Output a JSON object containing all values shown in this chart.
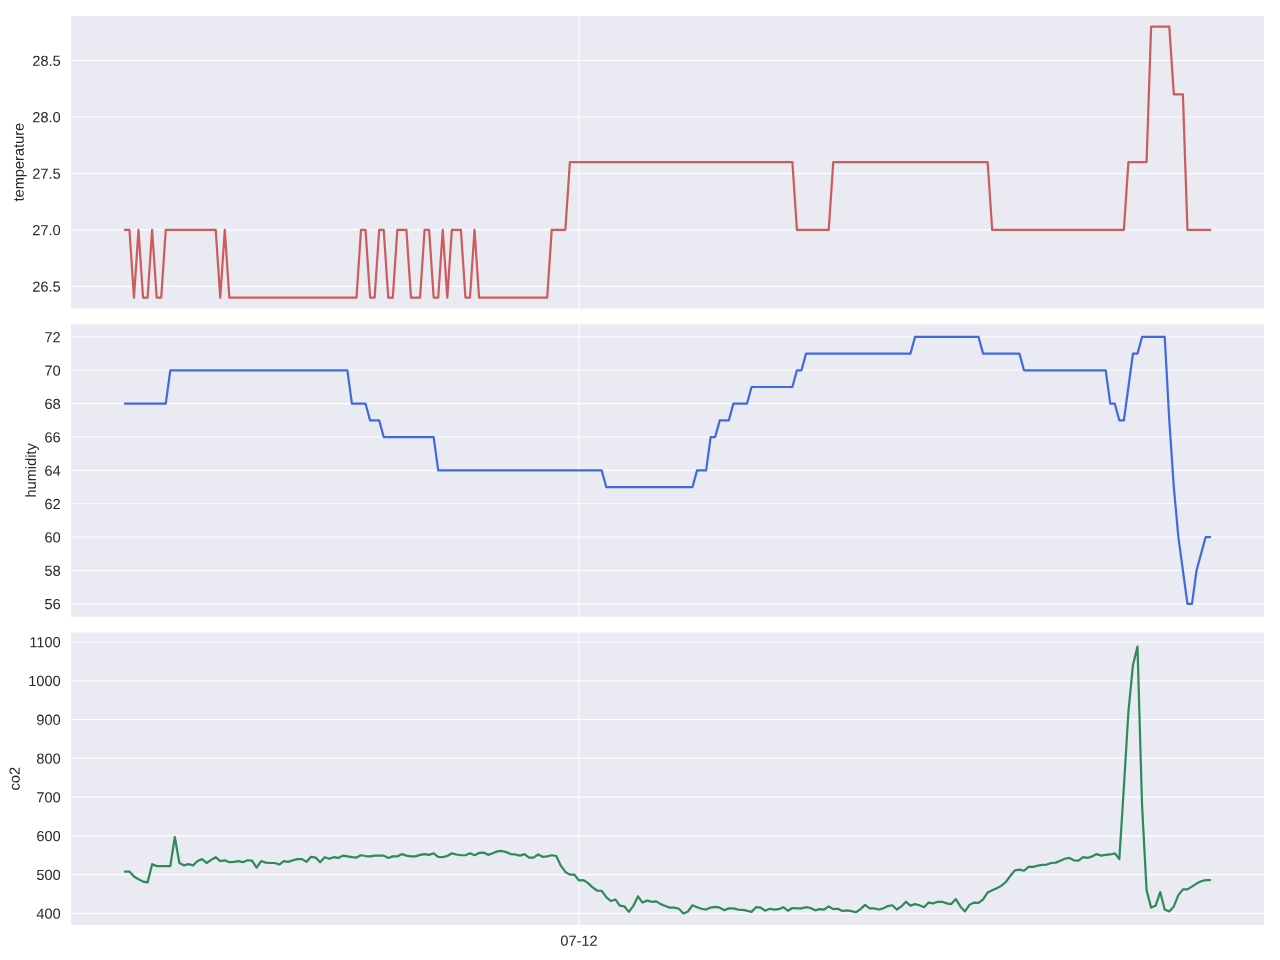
{
  "chart_data": [
    {
      "type": "line",
      "ylabel": "temperature",
      "grid": true,
      "tick_labels": "y",
      "ylim": [
        26.3,
        28.9
      ],
      "yticks": [
        26.5,
        {
          "value": 27,
          "label": "27.0"
        },
        27.5,
        {
          "value": 28,
          "label": "28.0"
        },
        28.5
      ],
      "categories": [
        null,
        null,
        null,
        null,
        null,
        null,
        null,
        null,
        null,
        null,
        null,
        null,
        null,
        null,
        null,
        null,
        null,
        null,
        null,
        null,
        null,
        null,
        null,
        null,
        null,
        null,
        null,
        null,
        null,
        null,
        null,
        null,
        null,
        null,
        null,
        null,
        null,
        null,
        null,
        null,
        null,
        null,
        null,
        null,
        null,
        null,
        null,
        null,
        null,
        null,
        null,
        null,
        null,
        null,
        null,
        null,
        null,
        null,
        null,
        null,
        null,
        null,
        null,
        null,
        null,
        null,
        null,
        null,
        null,
        null,
        null,
        null,
        null,
        null,
        null,
        null,
        null,
        null,
        null,
        null,
        null,
        null,
        null,
        null,
        null,
        null,
        null,
        null,
        null,
        null,
        null,
        null,
        null,
        null,
        null,
        null,
        null,
        null,
        null,
        null,
        null,
        null,
        null,
        null,
        null,
        null,
        null,
        null,
        null,
        null,
        null,
        null,
        null,
        null,
        null,
        null,
        null,
        null,
        null,
        null,
        null,
        null,
        null,
        null,
        null,
        null,
        null,
        null,
        null,
        null,
        null,
        null,
        null,
        null,
        null,
        null,
        null,
        null,
        null,
        null,
        null,
        null,
        null,
        null,
        null,
        null,
        null,
        null,
        null,
        null,
        null,
        null,
        null,
        null,
        null,
        null,
        null,
        null,
        null,
        null,
        null,
        null,
        null,
        null,
        null,
        null,
        null,
        null,
        null,
        null,
        null,
        null,
        null,
        null,
        null,
        null,
        null,
        null,
        null,
        null,
        null,
        null,
        null,
        null,
        null,
        null,
        null,
        null,
        null,
        null,
        null,
        null,
        null,
        null,
        null,
        null,
        null,
        null,
        null,
        null,
        null,
        null,
        null,
        null,
        null,
        null,
        null,
        null,
        null,
        null,
        null,
        null,
        null,
        null,
        null,
        null,
        null,
        null,
        null,
        null,
        null,
        null,
        null,
        null,
        null,
        null,
        null,
        null,
        null,
        null,
        null,
        null,
        null,
        null,
        null,
        null,
        null,
        null,
        null,
        null
      ],
      "series": [
        {
          "color": "#cd5c5c",
          "values": [
            27.0,
            27.0,
            26.4,
            27.0,
            26.4,
            26.4,
            27.0,
            26.4,
            26.4,
            27.0,
            27.0,
            27.0,
            27.0,
            27.0,
            27.0,
            27.0,
            27.0,
            27.0,
            27.0,
            27.0,
            27.0,
            26.4,
            27.0,
            26.4,
            26.4,
            26.4,
            26.4,
            26.4,
            26.4,
            26.4,
            26.4,
            26.4,
            26.4,
            26.4,
            26.4,
            26.4,
            26.4,
            26.4,
            26.4,
            26.4,
            26.4,
            26.4,
            26.4,
            26.4,
            26.4,
            26.4,
            26.4,
            26.4,
            26.4,
            26.4,
            26.4,
            26.4,
            27.0,
            27.0,
            26.4,
            26.4,
            27.0,
            27.0,
            26.4,
            26.4,
            27.0,
            27.0,
            27.0,
            26.4,
            26.4,
            26.4,
            27.0,
            27.0,
            26.4,
            26.4,
            27.0,
            26.4,
            27.0,
            27.0,
            27.0,
            26.4,
            26.4,
            27.0,
            26.4,
            26.4,
            26.4,
            26.4,
            26.4,
            26.4,
            26.4,
            26.4,
            26.4,
            26.4,
            26.4,
            26.4,
            26.4,
            26.4,
            26.4,
            26.4,
            27.0,
            27.0,
            27.0,
            27.0,
            27.6,
            27.6,
            27.6,
            27.6,
            27.6,
            27.6,
            27.6,
            27.6,
            27.6,
            27.6,
            27.6,
            27.6,
            27.6,
            27.6,
            27.6,
            27.6,
            27.6,
            27.6,
            27.6,
            27.6,
            27.6,
            27.6,
            27.6,
            27.6,
            27.6,
            27.6,
            27.6,
            27.6,
            27.6,
            27.6,
            27.6,
            27.6,
            27.6,
            27.6,
            27.6,
            27.6,
            27.6,
            27.6,
            27.6,
            27.6,
            27.6,
            27.6,
            27.6,
            27.6,
            27.6,
            27.6,
            27.6,
            27.6,
            27.6,
            27.6,
            27.0,
            27.0,
            27.0,
            27.0,
            27.0,
            27.0,
            27.0,
            27.0,
            27.6,
            27.6,
            27.6,
            27.6,
            27.6,
            27.6,
            27.6,
            27.6,
            27.6,
            27.6,
            27.6,
            27.6,
            27.6,
            27.6,
            27.6,
            27.6,
            27.6,
            27.6,
            27.6,
            27.6,
            27.6,
            27.6,
            27.6,
            27.6,
            27.6,
            27.6,
            27.6,
            27.6,
            27.6,
            27.6,
            27.6,
            27.6,
            27.6,
            27.6,
            27.6,
            27.0,
            27.0,
            27.0,
            27.0,
            27.0,
            27.0,
            27.0,
            27.0,
            27.0,
            27.0,
            27.0,
            27.0,
            27.0,
            27.0,
            27.0,
            27.0,
            27.0,
            27.0,
            27.0,
            27.0,
            27.0,
            27.0,
            27.0,
            27.0,
            27.0,
            27.0,
            27.0,
            27.0,
            27.0,
            27.0,
            27.6,
            27.6,
            27.6,
            27.6,
            27.6,
            28.8,
            28.8,
            28.8,
            28.8,
            28.8,
            28.2,
            28.2,
            28.2,
            27.0,
            27.0,
            27.0,
            27.0,
            27.0,
            27.0
          ]
        }
      ]
    },
    {
      "type": "line",
      "ylabel": "humidity",
      "grid": true,
      "tick_labels": "y",
      "ylim": [
        55.2,
        72.8
      ],
      "yticks": [
        56,
        58,
        60,
        62,
        64,
        66,
        68,
        70,
        72
      ],
      "categories": [
        null,
        null,
        null,
        null,
        null,
        null,
        null,
        null,
        null,
        null,
        null,
        null,
        null,
        null,
        null,
        null,
        null,
        null,
        null,
        null,
        null,
        null,
        null,
        null,
        null,
        null,
        null,
        null,
        null,
        null,
        null,
        null,
        null,
        null,
        null,
        null,
        null,
        null,
        null,
        null,
        null,
        null,
        null,
        null,
        null,
        null,
        null,
        null,
        null,
        null,
        null,
        null,
        null,
        null,
        null,
        null,
        null,
        null,
        null,
        null,
        null,
        null,
        null,
        null,
        null,
        null,
        null,
        null,
        null,
        null,
        null,
        null,
        null,
        null,
        null,
        null,
        null,
        null,
        null,
        null,
        null,
        null,
        null,
        null,
        null,
        null,
        null,
        null,
        null,
        null,
        null,
        null,
        null,
        null,
        null,
        null,
        null,
        null,
        null,
        null,
        null,
        null,
        null,
        null,
        null,
        null,
        null,
        null,
        null,
        null,
        null,
        null,
        null,
        null,
        null,
        null,
        null,
        null,
        null,
        null,
        null,
        null,
        null,
        null,
        null,
        null,
        null,
        null,
        null,
        null,
        null,
        null,
        null,
        null,
        null,
        null,
        null,
        null,
        null,
        null,
        null,
        null,
        null,
        null,
        null,
        null,
        null,
        null,
        null,
        null,
        null,
        null,
        null,
        null,
        null,
        null,
        null,
        null,
        null,
        null,
        null,
        null,
        null,
        null,
        null,
        null,
        null,
        null,
        null,
        null,
        null,
        null,
        null,
        null,
        null,
        null,
        null,
        null,
        null,
        null,
        null,
        null,
        null,
        null,
        null,
        null,
        null,
        null,
        null,
        null,
        null,
        null,
        null,
        null,
        null,
        null,
        null,
        null,
        null,
        null,
        null,
        null,
        null,
        null,
        null,
        null,
        null,
        null,
        null,
        null,
        null,
        null,
        null,
        null,
        null,
        null,
        null,
        null,
        null,
        null,
        null,
        null,
        null,
        null,
        null,
        null,
        null,
        null,
        null,
        null,
        null,
        null,
        null,
        null,
        null,
        null,
        null,
        null,
        null,
        null
      ],
      "series": [
        {
          "color": "#4169e1",
          "values": [
            68,
            68,
            68,
            68,
            68,
            68,
            68,
            68,
            68,
            68,
            70,
            70,
            70,
            70,
            70,
            70,
            70,
            70,
            70,
            70,
            70,
            70,
            70,
            70,
            70,
            70,
            70,
            70,
            70,
            70,
            70,
            70,
            70,
            70,
            70,
            70,
            70,
            70,
            70,
            70,
            70,
            70,
            70,
            70,
            70,
            70,
            70,
            70,
            70,
            70,
            68,
            68,
            68,
            68,
            67,
            67,
            67,
            66,
            66,
            66,
            66,
            66,
            66,
            66,
            66,
            66,
            66,
            66,
            66,
            64,
            64,
            64,
            64,
            64,
            64,
            64,
            64,
            64,
            64,
            64,
            64,
            64,
            64,
            64,
            64,
            64,
            64,
            64,
            64,
            64,
            64,
            64,
            64,
            64,
            64,
            64,
            64,
            64,
            64,
            64,
            64,
            64,
            64,
            64,
            64,
            64,
            63,
            63,
            63,
            63,
            63,
            63,
            63,
            63,
            63,
            63,
            63,
            63,
            63,
            63,
            63,
            63,
            63,
            63,
            63,
            63,
            64,
            64,
            64,
            66,
            66,
            67,
            67,
            67,
            68,
            68,
            68,
            68,
            69,
            69,
            69,
            69,
            69,
            69,
            69,
            69,
            69,
            69,
            70,
            70,
            71,
            71,
            71,
            71,
            71,
            71,
            71,
            71,
            71,
            71,
            71,
            71,
            71,
            71,
            71,
            71,
            71,
            71,
            71,
            71,
            71,
            71,
            71,
            71,
            72,
            72,
            72,
            72,
            72,
            72,
            72,
            72,
            72,
            72,
            72,
            72,
            72,
            72,
            72,
            71,
            71,
            71,
            71,
            71,
            71,
            71,
            71,
            71,
            70,
            70,
            70,
            70,
            70,
            70,
            70,
            70,
            70,
            70,
            70,
            70,
            70,
            70,
            70,
            70,
            70,
            70,
            70,
            68,
            68,
            67,
            67,
            69,
            71,
            71,
            72,
            72,
            72,
            72,
            72,
            72,
            67,
            63,
            60,
            58,
            56,
            56,
            58,
            59,
            60,
            60
          ]
        }
      ]
    },
    {
      "type": "line",
      "ylabel": "co2",
      "grid": true,
      "ylim": [
        369,
        1126
      ],
      "yticks": [
        400,
        500,
        600,
        700,
        800,
        900,
        1000,
        1100
      ],
      "categories": [
        null,
        null,
        null,
        null,
        null,
        null,
        null,
        null,
        null,
        null,
        null,
        null,
        null,
        null,
        null,
        null,
        null,
        null,
        null,
        null,
        null,
        null,
        null,
        null,
        null,
        null,
        null,
        null,
        null,
        null,
        null,
        null,
        null,
        null,
        null,
        null,
        null,
        null,
        null,
        null,
        null,
        null,
        null,
        null,
        null,
        null,
        null,
        null,
        null,
        null,
        null,
        null,
        null,
        null,
        null,
        null,
        null,
        null,
        null,
        null,
        null,
        null,
        null,
        null,
        null,
        null,
        null,
        null,
        null,
        null,
        null,
        null,
        null,
        null,
        null,
        null,
        null,
        null,
        null,
        null,
        null,
        null,
        null,
        null,
        null,
        null,
        null,
        null,
        null,
        null,
        null,
        null,
        null,
        null,
        null,
        null,
        null,
        null,
        null,
        null,
        "07-12",
        null,
        null,
        null,
        null,
        null,
        null,
        null,
        null,
        null,
        null,
        null,
        null,
        null,
        null,
        null,
        null,
        null,
        null,
        null,
        null,
        null,
        null,
        null,
        null,
        null,
        null,
        null,
        null,
        null,
        null,
        null,
        null,
        null,
        null,
        null,
        null,
        null,
        null,
        null,
        null,
        null,
        null,
        null,
        null,
        null,
        null,
        null,
        null,
        null,
        null,
        null,
        null,
        null,
        null,
        null,
        null,
        null,
        null,
        null,
        null,
        null,
        null,
        null,
        null,
        null,
        null,
        null,
        null,
        null,
        null,
        null,
        null,
        null,
        null,
        null,
        null,
        null,
        null,
        null,
        null,
        null,
        null,
        null,
        null,
        null,
        null,
        null,
        null,
        null,
        null,
        null,
        null,
        null,
        null,
        null,
        null,
        null,
        null,
        null,
        null,
        null,
        null,
        null,
        null,
        null,
        null,
        null,
        null,
        null,
        null,
        null,
        null,
        null,
        null,
        null,
        null,
        null,
        null,
        null,
        null,
        null,
        null,
        null,
        null,
        null,
        null,
        null,
        null,
        null,
        null,
        null,
        null,
        null,
        null,
        null,
        null,
        null,
        null,
        null
      ],
      "series": [
        {
          "color": "#2e8b57",
          "values": [
            508,
            508,
            495,
            488,
            482,
            480,
            527,
            522,
            522,
            522,
            522,
            597,
            530,
            524,
            527,
            524,
            535,
            540,
            530,
            538,
            545,
            535,
            537,
            532,
            533,
            535,
            532,
            537,
            536,
            518,
            535,
            531,
            530,
            530,
            526,
            535,
            533,
            537,
            540,
            540,
            533,
            546,
            544,
            532,
            545,
            541,
            545,
            543,
            549,
            547,
            545,
            544,
            550,
            548,
            547,
            549,
            549,
            549,
            543,
            547,
            547,
            553,
            549,
            547,
            547,
            551,
            553,
            551,
            555,
            546,
            545,
            548,
            555,
            552,
            550,
            550,
            555,
            550,
            556,
            557,
            551,
            555,
            560,
            561,
            558,
            553,
            552,
            549,
            553,
            544,
            544,
            552,
            546,
            547,
            550,
            548,
            523,
            507,
            500,
            500,
            485,
            486,
            478,
            467,
            459,
            458,
            442,
            432,
            436,
            420,
            418,
            404,
            420,
            444,
            428,
            433,
            430,
            431,
            424,
            419,
            415,
            415,
            412,
            400,
            405,
            421,
            416,
            412,
            410,
            415,
            417,
            415,
            408,
            413,
            413,
            410,
            409,
            407,
            404,
            416,
            415,
            407,
            412,
            410,
            411,
            416,
            407,
            414,
            413,
            413,
            416,
            414,
            408,
            411,
            410,
            418,
            411,
            412,
            406,
            408,
            406,
            403,
            411,
            422,
            413,
            413,
            410,
            413,
            419,
            421,
            410,
            418,
            430,
            420,
            424,
            421,
            416,
            428,
            426,
            430,
            430,
            426,
            424,
            437,
            418,
            405,
            422,
            428,
            427,
            436,
            454,
            460,
            465,
            471,
            481,
            497,
            511,
            513,
            510,
            520,
            520,
            523,
            525,
            526,
            530,
            531,
            536,
            541,
            543,
            537,
            536,
            545,
            543,
            547,
            553,
            549,
            551,
            552,
            555,
            540,
            725,
            920,
            1040,
            1088,
            680,
            460,
            415,
            420,
            455,
            410,
            405,
            418,
            447,
            462,
            462,
            469,
            477,
            483,
            486,
            486
          ]
        }
      ]
    }
  ]
}
